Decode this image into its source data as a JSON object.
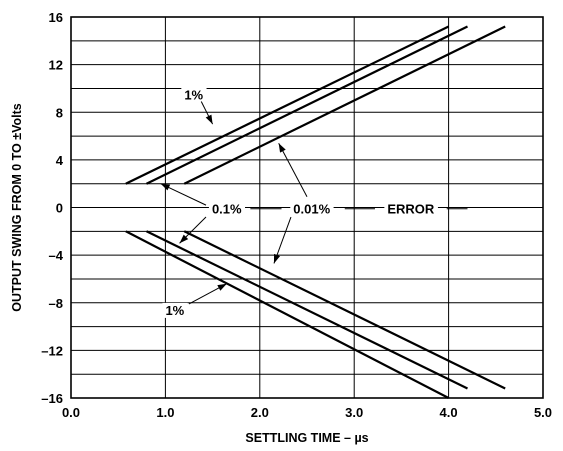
{
  "chart_data": {
    "type": "line",
    "title": "",
    "xlabel": "SETTLING TIME – µs",
    "ylabel": "OUTPUT SWING FROM 0 TO ±Volts",
    "xlim": [
      0,
      5
    ],
    "ylim": [
      -16,
      16
    ],
    "x_ticks": [
      "0.0",
      "1.0",
      "2.0",
      "3.0",
      "4.0",
      "5.0"
    ],
    "y_ticks": [
      "16",
      "12",
      "8",
      "4",
      "0",
      "–4",
      "–8",
      "–12",
      "–16"
    ],
    "grid": true,
    "series": [
      {
        "name": "1%",
        "points": [
          [
            0.58,
            2
          ],
          [
            4.0,
            15.2
          ]
        ]
      },
      {
        "name": "0.1%",
        "points": [
          [
            0.8,
            2
          ],
          [
            4.2,
            15.2
          ]
        ]
      },
      {
        "name": "0.01%",
        "points": [
          [
            1.2,
            2
          ],
          [
            4.6,
            15.2
          ]
        ]
      },
      {
        "name": "1%",
        "points": [
          [
            0.58,
            -2
          ],
          [
            4.0,
            -16
          ]
        ]
      },
      {
        "name": "0.1%",
        "points": [
          [
            0.8,
            -2
          ],
          [
            4.2,
            -15.2
          ]
        ]
      },
      {
        "name": "0.01%",
        "points": [
          [
            1.2,
            -2
          ],
          [
            4.6,
            -15.2
          ]
        ]
      }
    ],
    "annotations": [
      {
        "text": "1%",
        "x": 1.3,
        "y": 9.5,
        "target": [
          1.5,
          7.0
        ]
      },
      {
        "text": "0.1%",
        "x": 1.65,
        "y": -0.1,
        "target": [
          0.95,
          2.0
        ],
        "target2": [
          1.15,
          -3.0
        ]
      },
      {
        "text": "0.01%",
        "x": 2.55,
        "y": -0.1,
        "target": [
          2.2,
          5.4
        ],
        "target2": [
          2.15,
          -4.7
        ]
      },
      {
        "text": "ERROR",
        "x": 3.6,
        "y": -0.1
      },
      {
        "text": "1%",
        "x": 1.1,
        "y": -8.6,
        "target": [
          1.65,
          -6.4
        ]
      }
    ]
  }
}
